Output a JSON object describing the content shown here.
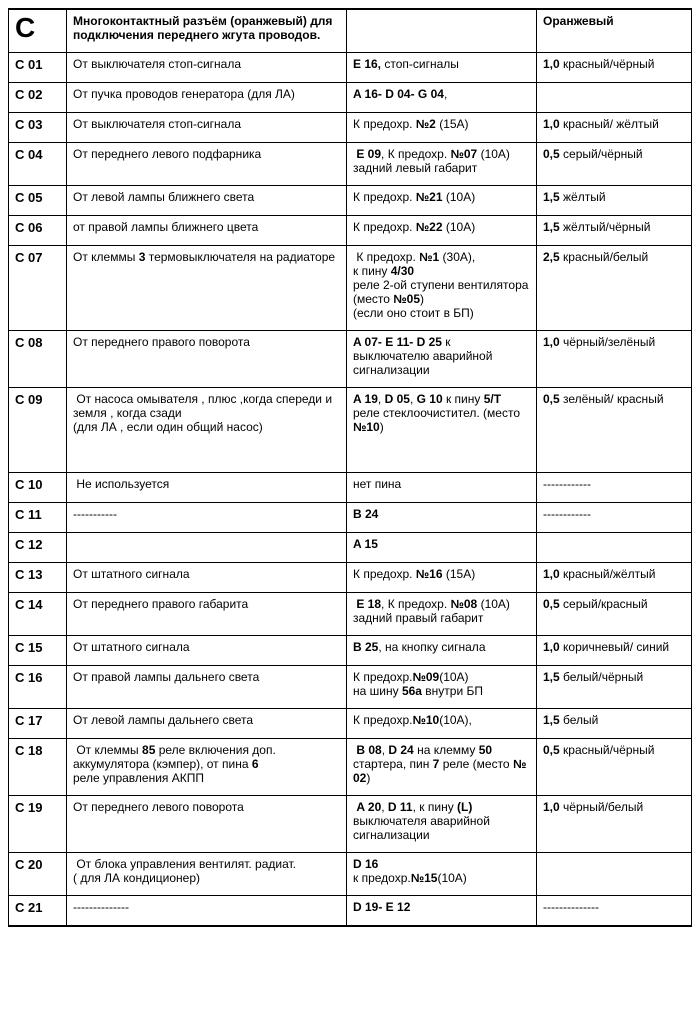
{
  "table": {
    "header": {
      "code": "C",
      "desc": "Многоконтактный разъём (оранжевый) для подключения переднего жгута проводов.",
      "ref": "",
      "wire": "Оранжевый"
    },
    "rows": [
      {
        "code": "C 01",
        "desc": "От выключателя стоп-сигнала",
        "ref": "<b>E 16,</b> стоп-сигналы",
        "wire": "<b>1,0</b> красный/чёрный"
      },
      {
        "code": "C 02",
        "desc": "От пучка проводов генератора (для ЛА)",
        "ref": "<b>A 16- D 04- G 04</b>,",
        "wire": ""
      },
      {
        "code": "C 03",
        "desc": "От выключателя стоп-сигнала",
        "ref": "К предохр. <b>№2</b> (15А)",
        "wire": "<b>1,0</b> красный/ жёлтый"
      },
      {
        "code": "C 04",
        "desc": "От переднего левого подфарника",
        "ref": "&nbsp;<b>E 09</b>, К предохр. <b>№07</b> (10А)<br>задний левый габарит",
        "wire": "<b>0,5</b> серый/чёрный"
      },
      {
        "code": "C 05",
        "desc": "От левой лампы ближнего света",
        "ref": "К предохр. <b>№21</b> (10А)",
        "wire": "<b>1,5</b> жёлтый"
      },
      {
        "code": "C 06",
        "desc": "от правой лампы ближнего цвета",
        "ref": "К предохр. <b>№22</b> (10А)",
        "wire": "<b>1,5</b> жёлтый/чёрный"
      },
      {
        "code": "C 07",
        "desc": "От клеммы <b>3</b> термовыключателя на радиаторе",
        "ref": "&nbsp;К предохр. <b>№1</b> (30А),<br>к пину <b>4/30</b><br>реле 2-ой ступени вентилятора (место <b>№05</b>)<br>(если оно стоит в БП)",
        "wire": "<b>2,5</b> красный/белый"
      },
      {
        "code": "C 08",
        "desc": "От переднего правого поворота",
        "ref": "<b>A 07- E 11- D 25</b> к выключателю аварийной сигнализации",
        "wire": "<b>1,0</b> чёрный/зелёный"
      },
      {
        "code": "C 09",
        "desc": "&nbsp;От насоса омывателя , плюс ,когда спереди и земля , когда сзади<br>(для ЛА , если один общий насос)<br><br><br>",
        "ref": "<b>A 19</b>, <b>D 05</b>, <b>G 10</b> к пину <b>5/T</b> реле стеклоочистител. (место <b>№10</b>)",
        "wire": "<b>0,5</b> зелёный/ красный"
      },
      {
        "code": "C 10",
        "desc": "&nbsp;Не используется",
        "ref": "нет пина",
        "wire": "------------"
      },
      {
        "code": "C 11",
        "desc": "-----------",
        "ref": "<b>B 24</b>",
        "wire": "------------"
      },
      {
        "code": "C 12",
        "desc": "",
        "ref": "<b>A 15</b>",
        "wire": ""
      },
      {
        "code": "C 13",
        "desc": "От штатного сигнала",
        "ref": "К предохр. <b>№16</b> (15А)",
        "wire": "<b>1,0</b> красный/жёлтый"
      },
      {
        "code": "C 14",
        "desc": "От переднего правого габарита",
        "ref": "&nbsp;<b>E 18</b>, К предохр. <b>№08</b> (10А)<br>задний правый габарит",
        "wire": "<b>0,5</b> серый/красный"
      },
      {
        "code": "C 15",
        "desc": "От штатного сигнала",
        "ref": "<b>B 25</b>, на кнопку сигнала",
        "wire": "<b>1,0</b> коричневый/ синий"
      },
      {
        "code": "C 16",
        "desc": "От правой лампы дальнего света",
        "ref": "К предохр.<b>№09</b>(10А)<br>на шину <b>56а</b> внутри БП",
        "wire": "<b>1,5</b> белый/чёрный"
      },
      {
        "code": "C 17",
        "desc": "От левой лампы дальнего света",
        "ref": "К предохр.<b>№10</b>(10А),",
        "wire": "<b>1,5</b> белый"
      },
      {
        "code": "C 18",
        "desc": "&nbsp;От клеммы <b>85</b> реле включения доп. аккумулятора (кэмпер), от пина <b>6</b><br>реле управления АКПП",
        "ref": "&nbsp;<b>B 08</b>, <b>D 24</b> на клемму <b>50</b> стартера, пин <b>7</b> реле (место <b>№ 02</b>)",
        "wire": "<b>0,5</b> красный/чёрный"
      },
      {
        "code": "C 19",
        "desc": "От переднего левого поворота",
        "ref": "&nbsp;<b>A 20</b>, <b>D 11</b>, к пину <b>(L)</b> выключателя аварийной сигнализации",
        "wire": "<b>1,0</b> чёрный/белый"
      },
      {
        "code": "C 20",
        "desc": "&nbsp;От блока управления вентилят. радиат.<br>( для ЛА кондиционер)",
        "ref": "<b>D 16</b><br>к предохр.<b>№15</b>(10А)",
        "wire": ""
      },
      {
        "code": "C 21",
        "desc": "--------------",
        "ref": "<b>D 19- E 12</b>",
        "wire": "--------------"
      }
    ]
  }
}
